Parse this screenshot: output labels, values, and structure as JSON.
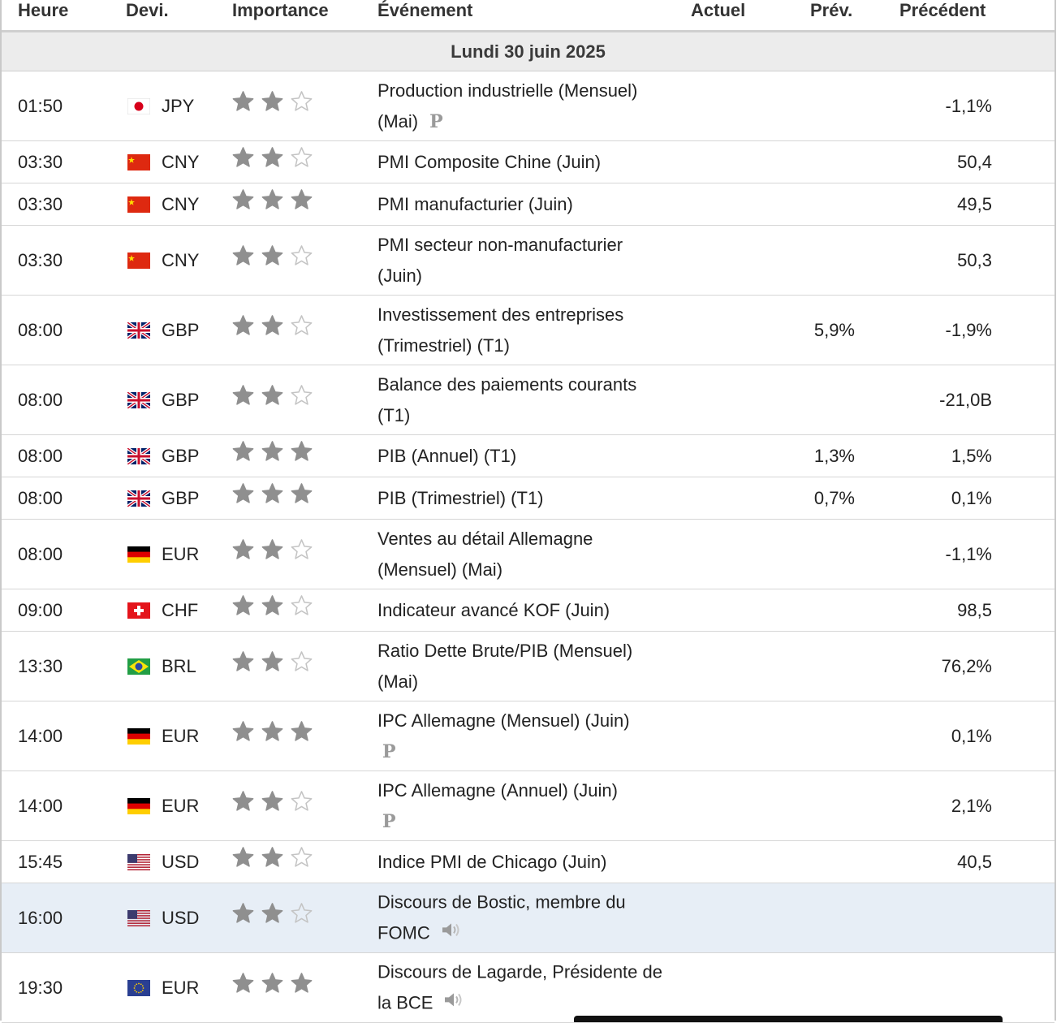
{
  "columns": {
    "heure": "Heure",
    "devise": "Devi.",
    "importance": "Importance",
    "evenement": "Événement",
    "actuel": "Actuel",
    "prev": "Prév.",
    "precedent": "Précédent"
  },
  "day_label": "Lundi 30 juin 2025",
  "colors": {
    "star_filled": "#8f8f8f",
    "star_empty": "#c4c4c4",
    "highlight_row": "#e7eef6",
    "header_border": "#cfcfcf"
  },
  "events": [
    {
      "time": "01:50",
      "flag": "jp",
      "currency": "JPY",
      "stars": 2,
      "event": "Production industrielle (Mensuel) (Mai)",
      "prelim": "P",
      "actuel": "",
      "prev": "",
      "precedent": "-1,1%"
    },
    {
      "time": "03:30",
      "flag": "cn",
      "currency": "CNY",
      "stars": 2,
      "event": "PMI Composite Chine (Juin)",
      "actuel": "",
      "prev": "",
      "precedent": "50,4"
    },
    {
      "time": "03:30",
      "flag": "cn",
      "currency": "CNY",
      "stars": 3,
      "event": "PMI manufacturier (Juin)",
      "actuel": "",
      "prev": "",
      "precedent": "49,5"
    },
    {
      "time": "03:30",
      "flag": "cn",
      "currency": "CNY",
      "stars": 2,
      "event": "PMI secteur non-manufacturier (Juin)",
      "actuel": "",
      "prev": "",
      "precedent": "50,3"
    },
    {
      "time": "08:00",
      "flag": "gb",
      "currency": "GBP",
      "stars": 2,
      "event": "Investissement des entreprises (Trimestriel) (T1)",
      "actuel": "",
      "prev": "5,9%",
      "precedent": "-1,9%"
    },
    {
      "time": "08:00",
      "flag": "gb",
      "currency": "GBP",
      "stars": 2,
      "event": "Balance des paiements courants (T1)",
      "actuel": "",
      "prev": "",
      "precedent": "-21,0B"
    },
    {
      "time": "08:00",
      "flag": "gb",
      "currency": "GBP",
      "stars": 3,
      "event": "PIB (Annuel) (T1)",
      "actuel": "",
      "prev": "1,3%",
      "precedent": "1,5%"
    },
    {
      "time": "08:00",
      "flag": "gb",
      "currency": "GBP",
      "stars": 3,
      "event": "PIB (Trimestriel) (T1)",
      "actuel": "",
      "prev": "0,7%",
      "precedent": "0,1%"
    },
    {
      "time": "08:00",
      "flag": "de",
      "currency": "EUR",
      "stars": 2,
      "event": "Ventes au détail Allemagne (Mensuel) (Mai)",
      "actuel": "",
      "prev": "",
      "precedent": "-1,1%"
    },
    {
      "time": "09:00",
      "flag": "ch",
      "currency": "CHF",
      "stars": 2,
      "event": "Indicateur avancé KOF (Juin)",
      "actuel": "",
      "prev": "",
      "precedent": "98,5"
    },
    {
      "time": "13:30",
      "flag": "br",
      "currency": "BRL",
      "stars": 2,
      "event": "Ratio Dette Brute/PIB (Mensuel) (Mai)",
      "actuel": "",
      "prev": "",
      "precedent": "76,2%"
    },
    {
      "time": "14:00",
      "flag": "de",
      "currency": "EUR",
      "stars": 3,
      "event": "IPC Allemagne (Mensuel) (Juin)",
      "prelim": "P",
      "actuel": "",
      "prev": "",
      "precedent": "0,1%"
    },
    {
      "time": "14:00",
      "flag": "de",
      "currency": "EUR",
      "stars": 2,
      "event": "IPC Allemagne (Annuel) (Juin)",
      "prelim": "P",
      "actuel": "",
      "prev": "",
      "precedent": "2,1%"
    },
    {
      "time": "15:45",
      "flag": "us",
      "currency": "USD",
      "stars": 2,
      "event": "Indice PMI de Chicago (Juin)",
      "actuel": "",
      "prev": "",
      "precedent": "40,5"
    },
    {
      "time": "16:00",
      "flag": "us",
      "currency": "USD",
      "stars": 2,
      "event": "Discours de Bostic, membre du FOMC",
      "speech": true,
      "highlight": true,
      "actuel": "",
      "prev": "",
      "precedent": ""
    },
    {
      "time": "19:30",
      "flag": "eu",
      "currency": "EUR",
      "stars": 3,
      "event": "Discours de Lagarde, Présidente de la BCE",
      "speech": true,
      "actuel": "",
      "prev": "",
      "precedent": ""
    }
  ]
}
